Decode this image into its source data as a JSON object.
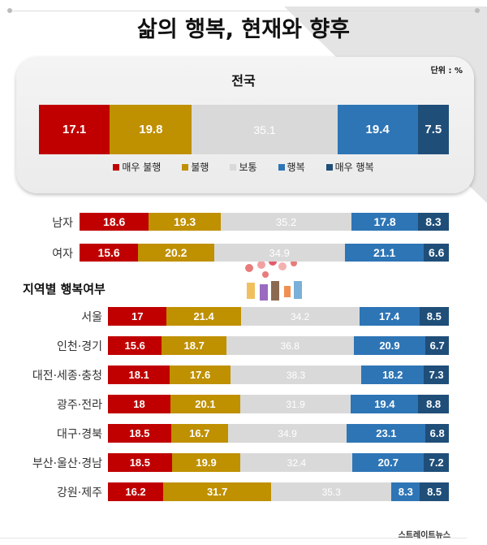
{
  "title": "삶의 행복, 현재와 향후",
  "unit_label": "단위 : %",
  "logo_text": "스트레이트뉴스",
  "region_section_title": "지역별 행복여부",
  "colors": {
    "very_unhappy": "#C00000",
    "unhappy": "#BF9000",
    "normal": "#D9D9D9",
    "happy": "#2E75B6",
    "very_happy": "#1F4E79"
  },
  "chart_data": [
    {
      "type": "bar",
      "stacked": true,
      "orientation": "horizontal",
      "title": "전국",
      "legend": [
        "매우 불행",
        "불행",
        "보통",
        "행복",
        "매우 행복"
      ],
      "legend_position": "bottom",
      "categories": [
        "전국"
      ],
      "series": [
        {
          "name": "매우 불행",
          "values": [
            17.1
          ]
        },
        {
          "name": "불행",
          "values": [
            19.8
          ]
        },
        {
          "name": "보통",
          "values": [
            35.1
          ]
        },
        {
          "name": "행복",
          "values": [
            19.4
          ]
        },
        {
          "name": "매우 행복",
          "values": [
            7.5
          ]
        }
      ]
    },
    {
      "type": "bar",
      "stacked": true,
      "orientation": "horizontal",
      "categories": [
        "남자",
        "여자"
      ],
      "series": [
        {
          "name": "매우 불행",
          "values": [
            18.6,
            15.6
          ]
        },
        {
          "name": "불행",
          "values": [
            19.3,
            20.2
          ]
        },
        {
          "name": "보통",
          "values": [
            35.2,
            34.9
          ]
        },
        {
          "name": "행복",
          "values": [
            17.8,
            21.1
          ]
        },
        {
          "name": "매우 행복",
          "values": [
            8.3,
            6.6
          ]
        }
      ]
    },
    {
      "type": "bar",
      "stacked": true,
      "orientation": "horizontal",
      "categories": [
        "서울",
        "인천·경기",
        "대전·세종·충청",
        "광주·전라",
        "대구·경북",
        "부산·울산·경남",
        "강원·제주"
      ],
      "series": [
        {
          "name": "매우 불행",
          "values": [
            17,
            15.6,
            18.1,
            18,
            18.5,
            18.5,
            16.2
          ]
        },
        {
          "name": "불행",
          "values": [
            21.4,
            18.7,
            17.6,
            20.1,
            16.7,
            19.9,
            31.7
          ]
        },
        {
          "name": "보통",
          "values": [
            34.2,
            36.8,
            38.3,
            31.9,
            34.9,
            32.4,
            35.3
          ]
        },
        {
          "name": "행복",
          "values": [
            17.4,
            20.9,
            18.2,
            19.4,
            23.1,
            20.7,
            8.3
          ]
        },
        {
          "name": "매우 행복",
          "values": [
            8.5,
            6.7,
            7.3,
            8.8,
            6.8,
            7.2,
            8.5
          ]
        }
      ]
    }
  ]
}
